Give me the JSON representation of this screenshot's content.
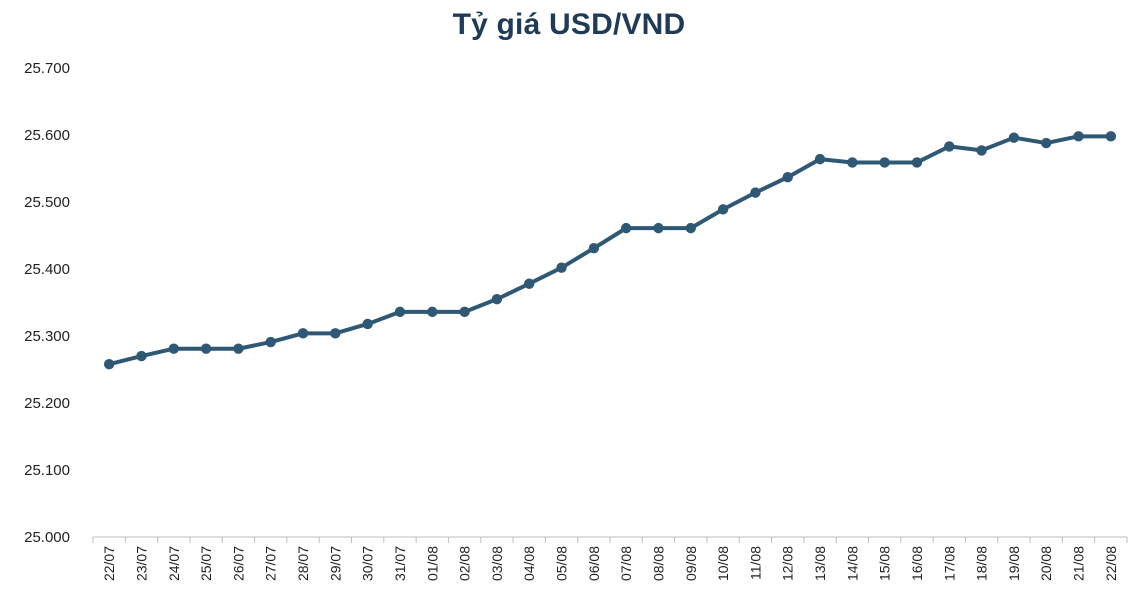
{
  "chart_data": {
    "type": "line",
    "title": "Tỷ giá USD/VND",
    "xlabel": "",
    "ylabel": "",
    "ylim": [
      25000,
      25700
    ],
    "yticks": [
      25000,
      25100,
      25200,
      25300,
      25400,
      25500,
      25600,
      25700
    ],
    "ytick_labels": [
      "25.000",
      "25.100",
      "25.200",
      "25.300",
      "25.400",
      "25.500",
      "25.600",
      "25.700"
    ],
    "grid": false,
    "legend": "none",
    "line_color": "#2e5874",
    "categories": [
      "22/07",
      "23/07",
      "24/07",
      "25/07",
      "26/07",
      "27/07",
      "28/07",
      "29/07",
      "30/07",
      "31/07",
      "01/08",
      "02/08",
      "03/08",
      "04/08",
      "05/08",
      "06/08",
      "07/08",
      "08/08",
      "09/08",
      "10/08",
      "11/08",
      "12/08",
      "13/08",
      "14/08",
      "15/08",
      "16/08",
      "17/08",
      "18/08",
      "19/08",
      "20/08",
      "21/08",
      "22/08"
    ],
    "series": [
      {
        "values": [
          25258,
          25270,
          25281,
          25281,
          25281,
          25291,
          25304,
          25304,
          25318,
          25336,
          25336,
          25336,
          25355,
          25378,
          25402,
          25431,
          25461,
          25461,
          25461,
          25489,
          25514,
          25537,
          25564,
          25559,
          25559,
          25559,
          25583,
          25577,
          25596,
          25588,
          25598,
          25598
        ]
      }
    ]
  }
}
